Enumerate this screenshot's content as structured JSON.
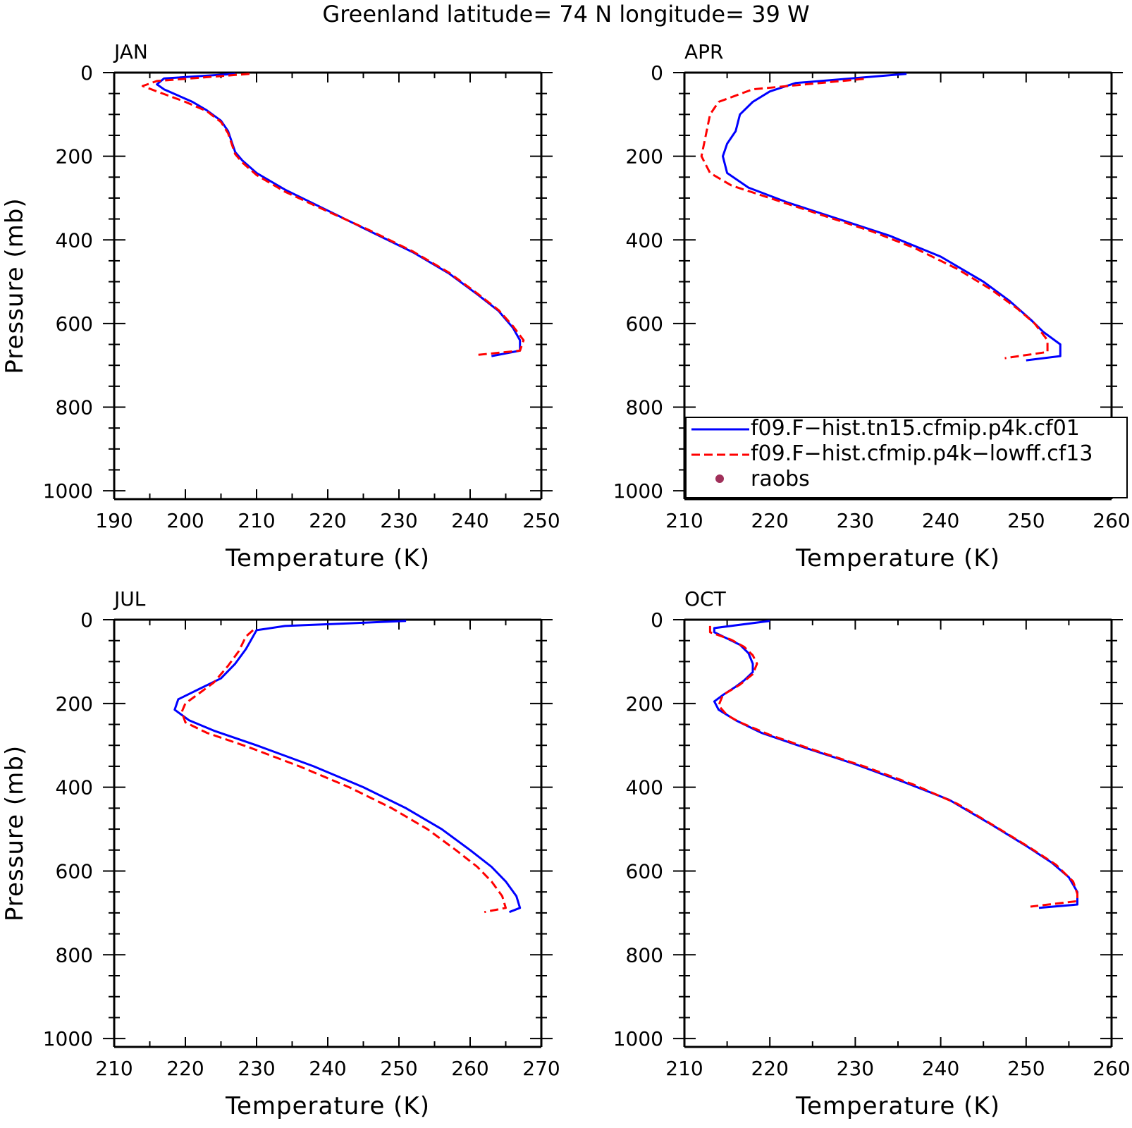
{
  "title": "Greenland  latitude= 74 N longitude= 39 W",
  "chart_data": [
    {
      "type": "line",
      "panel_label": "JAN",
      "xlabel": "Temperature (K)",
      "ylabel": "Pressure (mb)",
      "xlim": [
        190,
        250
      ],
      "ylim": [
        1020,
        0
      ],
      "xticks": [
        190,
        200,
        210,
        220,
        230,
        240,
        250
      ],
      "yticks": [
        0,
        200,
        400,
        600,
        800,
        1000
      ],
      "series": [
        {
          "name": "f09.F−hist.tn15.cfmip.p4k.cf01",
          "color": "#0000ff",
          "dash": "solid",
          "points": [
            [
              207,
              3
            ],
            [
              197,
              14
            ],
            [
              196,
              28
            ],
            [
              197,
              40
            ],
            [
              201,
              70
            ],
            [
              203,
              90
            ],
            [
              205,
              115
            ],
            [
              206,
              140
            ],
            [
              207,
              190
            ],
            [
              208,
              210
            ],
            [
              210,
              240
            ],
            [
              214,
              280
            ],
            [
              220,
              330
            ],
            [
              226,
              380
            ],
            [
              232,
              430
            ],
            [
              237,
              480
            ],
            [
              241,
              530
            ],
            [
              244,
              570
            ],
            [
              246,
              610
            ],
            [
              247,
              640
            ],
            [
              247,
              665
            ],
            [
              243,
              678
            ]
          ]
        },
        {
          "name": "f09.F−hist.cfmip.p4k−lowff.cf13",
          "color": "#ff0000",
          "dash": "dashed",
          "points": [
            [
              209,
              3
            ],
            [
              196,
              20
            ],
            [
              194,
              32
            ],
            [
              196,
              45
            ],
            [
              200,
              70
            ],
            [
              203,
              92
            ],
            [
              205,
              118
            ],
            [
              206,
              145
            ],
            [
              207,
              195
            ],
            [
              208,
              215
            ],
            [
              210,
              245
            ],
            [
              214,
              285
            ],
            [
              220,
              332
            ],
            [
              226,
              378
            ],
            [
              232,
              428
            ],
            [
              237,
              478
            ],
            [
              241,
              528
            ],
            [
              244,
              568
            ],
            [
              246,
              606
            ],
            [
              247.5,
              640
            ],
            [
              247,
              665
            ],
            [
              241,
              675
            ]
          ]
        }
      ]
    },
    {
      "type": "line",
      "panel_label": "APR",
      "xlabel": "Temperature (K)",
      "ylabel": "",
      "xlim": [
        210,
        260
      ],
      "ylim": [
        1020,
        0
      ],
      "xticks": [
        210,
        220,
        230,
        240,
        250,
        260
      ],
      "yticks": [
        0,
        200,
        400,
        600,
        800,
        1000
      ],
      "legend": {
        "placement": "lower-right",
        "entries": [
          "f09.F−hist.tn15.cfmip.p4k.cf01",
          "f09.F−hist.cfmip.p4k−lowff.cf13",
          "raobs"
        ],
        "raobs_color": "#a0305a"
      },
      "series": [
        {
          "name": "f09.F−hist.tn15.cfmip.p4k.cf01",
          "color": "#0000ff",
          "dash": "solid",
          "points": [
            [
              236,
              3
            ],
            [
              223,
              25
            ],
            [
              220,
              45
            ],
            [
              218,
              70
            ],
            [
              216.5,
              100
            ],
            [
              216,
              140
            ],
            [
              215,
              170
            ],
            [
              214.5,
              200
            ],
            [
              215,
              240
            ],
            [
              217.5,
              275
            ],
            [
              222,
              310
            ],
            [
              228,
              350
            ],
            [
              234,
              390
            ],
            [
              240,
              440
            ],
            [
              245,
              500
            ],
            [
              248,
              545
            ],
            [
              250.5,
              590
            ],
            [
              252,
              620
            ],
            [
              254,
              650
            ],
            [
              254,
              678
            ],
            [
              250,
              688
            ]
          ]
        },
        {
          "name": "f09.F−hist.cfmip.p4k−lowff.cf13",
          "color": "#ff0000",
          "dash": "dashed",
          "points": [
            [
              231,
              15
            ],
            [
              218,
              40
            ],
            [
              214,
              70
            ],
            [
              213,
              100
            ],
            [
              212.5,
              150
            ],
            [
              212,
              200
            ],
            [
              213,
              240
            ],
            [
              215.5,
              270
            ],
            [
              220,
              300
            ],
            [
              226,
              340
            ],
            [
              232,
              380
            ],
            [
              237,
              420
            ],
            [
              242,
              470
            ],
            [
              246,
              520
            ],
            [
              249,
              565
            ],
            [
              251,
              600
            ],
            [
              252.5,
              640
            ],
            [
              252.5,
              668
            ],
            [
              247.5,
              683
            ]
          ]
        }
      ]
    },
    {
      "type": "line",
      "panel_label": "JUL",
      "xlabel": "Temperature (K)",
      "ylabel": "Pressure (mb)",
      "xlim": [
        210,
        270
      ],
      "ylim": [
        1020,
        0
      ],
      "xticks": [
        210,
        220,
        230,
        240,
        250,
        260,
        270
      ],
      "yticks": [
        0,
        200,
        400,
        600,
        800,
        1000
      ],
      "series": [
        {
          "name": "f09.F−hist.tn15.cfmip.p4k.cf01",
          "color": "#0000ff",
          "dash": "solid",
          "points": [
            [
              251,
              3
            ],
            [
              234,
              15
            ],
            [
              230,
              25
            ],
            [
              229.5,
              40
            ],
            [
              228.5,
              70
            ],
            [
              227,
              105
            ],
            [
              225,
              140
            ],
            [
              222,
              165
            ],
            [
              219,
              190
            ],
            [
              218.5,
              215
            ],
            [
              220.5,
              240
            ],
            [
              224,
              265
            ],
            [
              230,
              300
            ],
            [
              238,
              350
            ],
            [
              245,
              400
            ],
            [
              251,
              450
            ],
            [
              256,
              500
            ],
            [
              260,
              550
            ],
            [
              263,
              590
            ],
            [
              265,
              625
            ],
            [
              266.5,
              660
            ],
            [
              267,
              688
            ],
            [
              265.5,
              698
            ]
          ]
        },
        {
          "name": "f09.F−hist.cfmip.p4k−lowff.cf13",
          "color": "#ff0000",
          "dash": "dashed",
          "points": [
            [
              229.5,
              25
            ],
            [
              228.5,
              40
            ],
            [
              227.5,
              75
            ],
            [
              226,
              110
            ],
            [
              224,
              150
            ],
            [
              222,
              175
            ],
            [
              220,
              200
            ],
            [
              219.5,
              220
            ],
            [
              220,
              245
            ],
            [
              223,
              270
            ],
            [
              229,
              305
            ],
            [
              236,
              350
            ],
            [
              243,
              400
            ],
            [
              249,
              450
            ],
            [
              254,
              500
            ],
            [
              258,
              550
            ],
            [
              261,
              590
            ],
            [
              263,
              625
            ],
            [
              264.5,
              660
            ],
            [
              265,
              688
            ],
            [
              262,
              698
            ]
          ]
        }
      ]
    },
    {
      "type": "line",
      "panel_label": "OCT",
      "xlabel": "Temperature (K)",
      "ylabel": "",
      "xlim": [
        210,
        260
      ],
      "ylim": [
        1020,
        0
      ],
      "xticks": [
        210,
        220,
        230,
        240,
        250,
        260
      ],
      "yticks": [
        0,
        200,
        400,
        600,
        800,
        1000
      ],
      "series": [
        {
          "name": "f09.F−hist.tn15.cfmip.p4k.cf01",
          "color": "#0000ff",
          "dash": "solid",
          "points": [
            [
              220,
              3
            ],
            [
              213.5,
              20
            ],
            [
              213.5,
              30
            ],
            [
              215.5,
              50
            ],
            [
              216.5,
              60
            ],
            [
              217.5,
              80
            ],
            [
              218,
              105
            ],
            [
              218,
              125
            ],
            [
              217,
              145
            ],
            [
              216,
              160
            ],
            [
              214.5,
              180
            ],
            [
              213.5,
              195
            ],
            [
              214,
              215
            ],
            [
              216,
              240
            ],
            [
              219,
              270
            ],
            [
              224,
              305
            ],
            [
              230,
              345
            ],
            [
              236,
              390
            ],
            [
              241,
              430
            ],
            [
              246,
              490
            ],
            [
              250,
              540
            ],
            [
              253,
              580
            ],
            [
              255,
              615
            ],
            [
              256,
              650
            ],
            [
              256,
              680
            ],
            [
              251.5,
              688
            ]
          ]
        },
        {
          "name": "f09.F−hist.cfmip.p4k−lowff.cf13",
          "color": "#ff0000",
          "dash": "dashed",
          "points": [
            [
              213,
              15
            ],
            [
              213,
              30
            ],
            [
              215.5,
              48
            ],
            [
              217,
              65
            ],
            [
              218,
              85
            ],
            [
              218.5,
              105
            ],
            [
              218,
              130
            ],
            [
              216.5,
              155
            ],
            [
              214.5,
              180
            ],
            [
              214,
              205
            ],
            [
              215,
              228
            ],
            [
              216.5,
              245
            ],
            [
              220,
              275
            ],
            [
              225,
              310
            ],
            [
              231,
              350
            ],
            [
              237,
              395
            ],
            [
              242,
              440
            ],
            [
              246.5,
              495
            ],
            [
              250.5,
              545
            ],
            [
              253.5,
              585
            ],
            [
              255.5,
              625
            ],
            [
              256,
              655
            ],
            [
              256,
              672
            ],
            [
              250.5,
              685
            ]
          ]
        }
      ]
    }
  ]
}
